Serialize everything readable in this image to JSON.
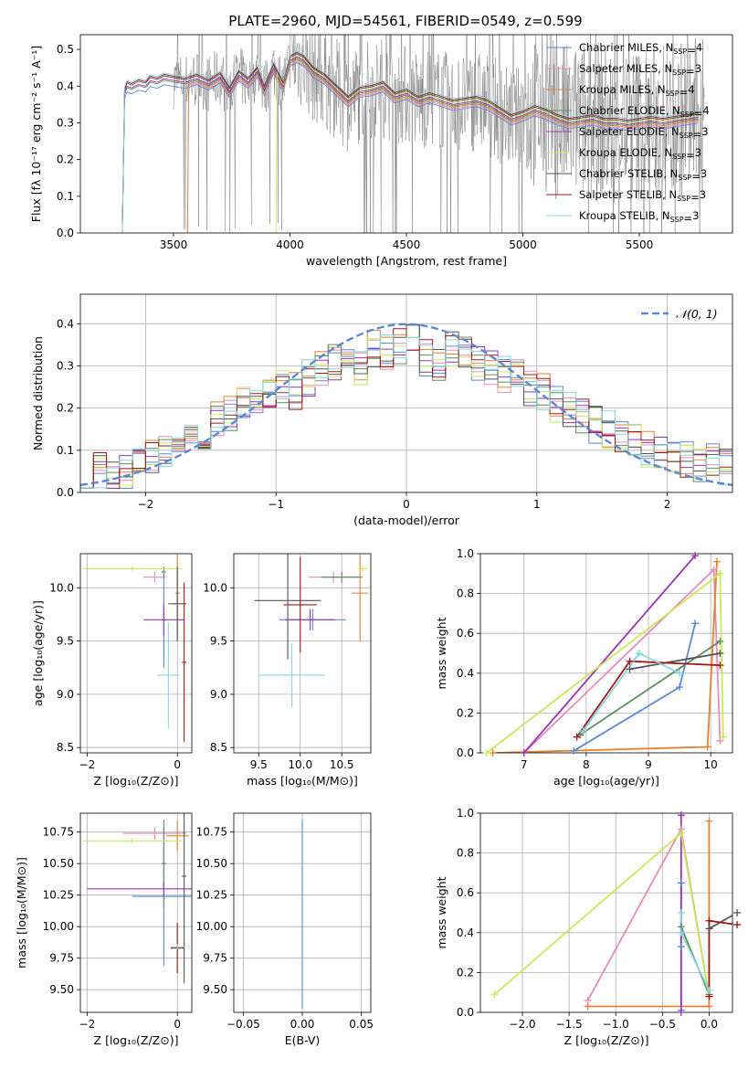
{
  "title": "PLATE=2960, MJD=54561, FIBERID=0549, z=0.599",
  "models": [
    {
      "name": "Chabrier MILES",
      "nssp": "4",
      "color": "#5b87d9"
    },
    {
      "name": "Salpeter MILES",
      "nssp": "3",
      "color": "#e88bbd"
    },
    {
      "name": "Kroupa MILES",
      "nssp": "4",
      "color": "#e6812f"
    },
    {
      "name": "Chabrier ELODIE",
      "nssp": "4",
      "color": "#5e8c5e"
    },
    {
      "name": "Salpeter ELODIE",
      "nssp": "3",
      "color": "#9b30b8"
    },
    {
      "name": "Kroupa ELODIE",
      "nssp": "3",
      "color": "#c9e85a"
    },
    {
      "name": "Chabrier STELIB",
      "nssp": "3",
      "color": "#555555"
    },
    {
      "name": "Salpeter STELIB",
      "nssp": "3",
      "color": "#a01818"
    },
    {
      "name": "Kroupa STELIB",
      "nssp": "3",
      "color": "#86d6dc"
    }
  ],
  "data_color": "#808080",
  "gauss_color": "#5b87d9",
  "chart_data": [
    {
      "id": "spectrum",
      "type": "line",
      "title": "PLATE=2960, MJD=54561, FIBERID=0549, z=0.599",
      "xlabel": "wavelength [Angstrom, rest frame]",
      "ylabel": "Flux [fλ 10⁻¹⁷ erg cm⁻² s⁻¹ A⁻¹]",
      "xlim": [
        3100,
        5900
      ],
      "ylim": [
        0,
        0.54
      ],
      "xticks": [
        3500,
        4000,
        4500,
        5000,
        5500
      ],
      "yticks": [
        0.0,
        0.1,
        0.2,
        0.3,
        0.4,
        0.5
      ],
      "grid": false,
      "legend": "top-right",
      "model_x": [
        3280,
        3290,
        3300,
        3320,
        3350,
        3380,
        3400,
        3430,
        3460,
        3500,
        3550,
        3600,
        3650,
        3700,
        3740,
        3780,
        3820,
        3860,
        3890,
        3930,
        3970,
        4000,
        4030,
        4060,
        4100,
        4150,
        4200,
        4250,
        4300,
        4350,
        4400,
        4450,
        4500,
        4550,
        4600,
        4650,
        4700,
        4750,
        4800,
        4850,
        4900,
        4950,
        5000,
        5050,
        5100,
        5150,
        5200,
        5250,
        5300,
        5350,
        5400,
        5450,
        5500,
        5550,
        5600,
        5650,
        5700,
        5750
      ],
      "model_y": [
        0.0,
        0.38,
        0.4,
        0.395,
        0.405,
        0.4,
        0.415,
        0.41,
        0.42,
        0.415,
        0.41,
        0.42,
        0.405,
        0.425,
        0.385,
        0.43,
        0.41,
        0.44,
        0.39,
        0.45,
        0.4,
        0.47,
        0.48,
        0.47,
        0.44,
        0.42,
        0.39,
        0.36,
        0.385,
        0.39,
        0.4,
        0.37,
        0.38,
        0.36,
        0.37,
        0.36,
        0.35,
        0.355,
        0.36,
        0.35,
        0.33,
        0.31,
        0.32,
        0.335,
        0.325,
        0.31,
        0.3,
        0.305,
        0.31,
        0.3,
        0.3,
        0.295,
        0.3,
        0.305,
        0.3,
        0.305,
        0.31,
        0.315
      ]
    },
    {
      "id": "residuals",
      "type": "histogram",
      "xlabel": "(data-model)/error",
      "ylabel": "Normed distribution",
      "xlim": [
        -2.5,
        2.5
      ],
      "ylim": [
        0,
        0.47
      ],
      "xticks": [
        -2,
        -1,
        0,
        1,
        2
      ],
      "yticks": [
        0.0,
        0.1,
        0.2,
        0.3,
        0.4
      ],
      "grid": true,
      "legend": "top-right",
      "gauss_label": "𝒩(0, 1)",
      "bin_edges": [
        -2.5,
        -2.4,
        -2.3,
        -2.2,
        -2.1,
        -2.0,
        -1.9,
        -1.8,
        -1.7,
        -1.6,
        -1.5,
        -1.4,
        -1.3,
        -1.2,
        -1.1,
        -1.0,
        -0.9,
        -0.8,
        -0.7,
        -0.6,
        -0.5,
        -0.4,
        -0.3,
        -0.2,
        -0.1,
        0.0,
        0.1,
        0.2,
        0.3,
        0.4,
        0.5,
        0.6,
        0.7,
        0.8,
        0.9,
        1.0,
        1.1,
        1.2,
        1.3,
        1.4,
        1.5,
        1.6,
        1.7,
        1.8,
        1.9,
        2.0,
        2.1,
        2.2,
        2.3,
        2.4,
        2.5
      ],
      "hist_base": [
        0.04,
        0.05,
        0.04,
        0.05,
        0.06,
        0.08,
        0.09,
        0.1,
        0.12,
        0.14,
        0.17,
        0.19,
        0.21,
        0.2,
        0.23,
        0.25,
        0.24,
        0.27,
        0.29,
        0.31,
        0.33,
        0.3,
        0.34,
        0.33,
        0.35,
        0.37,
        0.32,
        0.31,
        0.34,
        0.33,
        0.31,
        0.3,
        0.28,
        0.27,
        0.25,
        0.24,
        0.21,
        0.2,
        0.18,
        0.16,
        0.15,
        0.14,
        0.12,
        0.1,
        0.09,
        0.09,
        0.08,
        0.07,
        0.07,
        0.06
      ]
    },
    {
      "id": "age-vs-z",
      "type": "scatter",
      "xlabel": "Z [log₁₀(Z/Z⊙)]",
      "ylabel": "age  [log₁₀(age/yr)]",
      "xlim": [
        -2.15,
        0.32
      ],
      "ylim": [
        8.45,
        10.32
      ],
      "xticks": [
        -2,
        0
      ],
      "yticks": [
        8.5,
        9.0,
        9.5,
        10.0
      ],
      "grid": true,
      "points": [
        {
          "x": -0.3,
          "y": 9.7,
          "xerr": 0.05,
          "yerr": 0.45
        },
        {
          "x": -0.5,
          "y": 10.1,
          "xerr": 0.25,
          "yerr": 0.05
        },
        {
          "x": 0.0,
          "y": 9.95,
          "xerr": 0.05,
          "yerr": 0.45
        },
        {
          "x": -0.3,
          "y": 10.15,
          "xerr": 0.05,
          "yerr": 0.05
        },
        {
          "x": -0.3,
          "y": 9.7,
          "xerr": 0.45,
          "yerr": 0.15
        },
        {
          "x": -1.0,
          "y": 10.18,
          "xerr": 1.1,
          "yerr": 0.02
        },
        {
          "x": 0.0,
          "y": 9.85,
          "xerr": 0.2,
          "yerr": 0.35
        },
        {
          "x": 0.15,
          "y": 9.3,
          "xerr": 0.05,
          "yerr": 0.75
        },
        {
          "x": -0.2,
          "y": 9.18,
          "xerr": 0.25,
          "yerr": 0.5
        }
      ]
    },
    {
      "id": "age-vs-mass",
      "type": "scatter",
      "xlabel": "mass [log₁₀(M/M⊙)]",
      "ylabel": "",
      "xlim": [
        9.2,
        10.85
      ],
      "ylim": [
        8.45,
        10.32
      ],
      "xticks": [
        9.5,
        10.0,
        10.5
      ],
      "yticks": [
        8.5,
        9.0,
        9.5,
        10.0
      ],
      "grid": true,
      "points": [
        {
          "x": 10.15,
          "y": 9.7,
          "xerr": 0.4,
          "yerr": 0.1
        },
        {
          "x": 10.4,
          "y": 10.1,
          "xerr": 0.3,
          "yerr": 0.05
        },
        {
          "x": 10.72,
          "y": 9.95,
          "xerr": 0.1,
          "yerr": 0.45
        },
        {
          "x": 10.5,
          "y": 10.1,
          "xerr": 0.25,
          "yerr": 0.05
        },
        {
          "x": 10.12,
          "y": 9.7,
          "xerr": 0.3,
          "yerr": 0.1
        },
        {
          "x": 10.75,
          "y": 10.18,
          "xerr": 0.06,
          "yerr": 0.03
        },
        {
          "x": 9.85,
          "y": 9.88,
          "xerr": 0.4,
          "yerr": 0.55
        },
        {
          "x": 10.0,
          "y": 9.84,
          "xerr": 0.2,
          "yerr": 0.45
        },
        {
          "x": 9.9,
          "y": 9.18,
          "xerr": 0.4,
          "yerr": 0.3
        }
      ]
    },
    {
      "id": "weight-vs-age",
      "type": "line",
      "xlabel": "age  [log₁₀(age/yr)]",
      "ylabel": "mass weight",
      "xlim": [
        6.3,
        10.35
      ],
      "ylim": [
        0,
        1.0
      ],
      "xticks": [
        7,
        8,
        9,
        10
      ],
      "yticks": [
        0.0,
        0.2,
        0.4,
        0.6,
        0.8,
        1.0
      ],
      "grid": true,
      "series": [
        {
          "x": [
            7.8,
            9.5,
            9.75
          ],
          "y": [
            0.01,
            0.33,
            0.65
          ]
        },
        {
          "x": [
            7.0,
            10.05,
            10.15
          ],
          "y": [
            0.0,
            0.92,
            0.06
          ]
        },
        {
          "x": [
            6.5,
            9.95,
            10.1
          ],
          "y": [
            0.0,
            0.03,
            0.96
          ]
        },
        {
          "x": [
            7.9,
            10.15
          ],
          "y": [
            0.09,
            0.56
          ]
        },
        {
          "x": [
            7.0,
            9.75
          ],
          "y": [
            0.0,
            0.99
          ]
        },
        {
          "x": [
            6.4,
            10.15,
            10.2
          ],
          "y": [
            0.0,
            0.9,
            0.08
          ]
        },
        {
          "x": [
            8.7,
            10.15
          ],
          "y": [
            0.42,
            0.5
          ]
        },
        {
          "x": [
            7.85,
            8.7,
            10.15
          ],
          "y": [
            0.08,
            0.46,
            0.44
          ]
        },
        {
          "x": [
            7.95,
            8.85,
            9.5
          ],
          "y": [
            0.11,
            0.5,
            0.4
          ]
        }
      ]
    },
    {
      "id": "mass-vs-z",
      "type": "scatter",
      "xlabel": "Z [log₁₀(Z/Z⊙)]",
      "ylabel": "mass [log₁₀(M/M⊙)]",
      "xlim": [
        -2.15,
        0.32
      ],
      "ylim": [
        9.32,
        10.9
      ],
      "xticks": [
        -2,
        0
      ],
      "yticks": [
        9.5,
        9.75,
        10.0,
        10.25,
        10.5,
        10.75
      ],
      "grid": true,
      "points": [
        {
          "x": -0.3,
          "y": 10.24,
          "xerr": 0.7,
          "yerr": 0.55
        },
        {
          "x": -0.5,
          "y": 10.74,
          "xerr": 0.7,
          "yerr": 0.05
        },
        {
          "x": 0.0,
          "y": 10.72,
          "xerr": 0.25,
          "yerr": 0.12
        },
        {
          "x": -0.3,
          "y": 10.5,
          "xerr": 0.05,
          "yerr": 0.35
        },
        {
          "x": -0.3,
          "y": 10.3,
          "xerr": 1.7,
          "yerr": 0.05
        },
        {
          "x": -1.0,
          "y": 10.68,
          "xerr": 1.1,
          "yerr": 0.02
        },
        {
          "x": 0.15,
          "y": 10.4,
          "xerr": 0.05,
          "yerr": 0.85
        },
        {
          "x": 0.0,
          "y": 9.83,
          "xerr": 0.15,
          "yerr": 0.2
        },
        {
          "x": 0.0,
          "y": 9.84,
          "xerr": 0.15,
          "yerr": 0.02
        }
      ]
    },
    {
      "id": "mass-vs-ebv",
      "type": "scatter",
      "xlabel": "E(B-V)",
      "ylabel": "",
      "xlim": [
        -0.058,
        0.058
      ],
      "ylim": [
        9.32,
        10.9
      ],
      "xticks": [
        -0.05,
        0.0,
        0.05
      ],
      "yticks": [
        9.5,
        9.75,
        10.0,
        10.25,
        10.5,
        10.75
      ],
      "grid": true,
      "points": [
        {
          "x": 0.0,
          "y": 10.1,
          "xerr": 0.0,
          "yerr": 0.75
        }
      ]
    },
    {
      "id": "weight-vs-z",
      "type": "line",
      "xlabel": "Z [log₁₀(Z/Z⊙)]",
      "ylabel": "mass weight",
      "xlim": [
        -2.45,
        0.25
      ],
      "ylim": [
        0,
        1.0
      ],
      "xticks": [
        -2.0,
        -1.5,
        -1.0,
        -0.5,
        0.0
      ],
      "yticks": [
        0.0,
        0.2,
        0.4,
        0.6,
        0.8,
        1.0
      ],
      "grid": true,
      "series": [
        {
          "x": [
            -0.3,
            -0.3,
            -0.3
          ],
          "y": [
            0.33,
            0.65,
            0.01
          ]
        },
        {
          "x": [
            -1.3,
            -0.3,
            0.0
          ],
          "y": [
            0.06,
            0.92,
            0.08
          ]
        },
        {
          "x": [
            -1.3,
            0.0,
            0.0
          ],
          "y": [
            0.03,
            0.03,
            0.96
          ]
        },
        {
          "x": [
            -0.3,
            0.0
          ],
          "y": [
            0.43,
            0.09
          ]
        },
        {
          "x": [
            -0.3,
            -0.3
          ],
          "y": [
            0.0,
            0.99
          ]
        },
        {
          "x": [
            -2.3,
            -0.3,
            0.0
          ],
          "y": [
            0.09,
            0.9,
            0.08
          ]
        },
        {
          "x": [
            0.0,
            0.3
          ],
          "y": [
            0.42,
            0.5
          ]
        },
        {
          "x": [
            0.0,
            0.0,
            0.3
          ],
          "y": [
            0.08,
            0.46,
            0.44
          ]
        },
        {
          "x": [
            -0.3,
            -0.3,
            0.0
          ],
          "y": [
            0.5,
            0.4,
            0.11
          ]
        }
      ]
    }
  ]
}
